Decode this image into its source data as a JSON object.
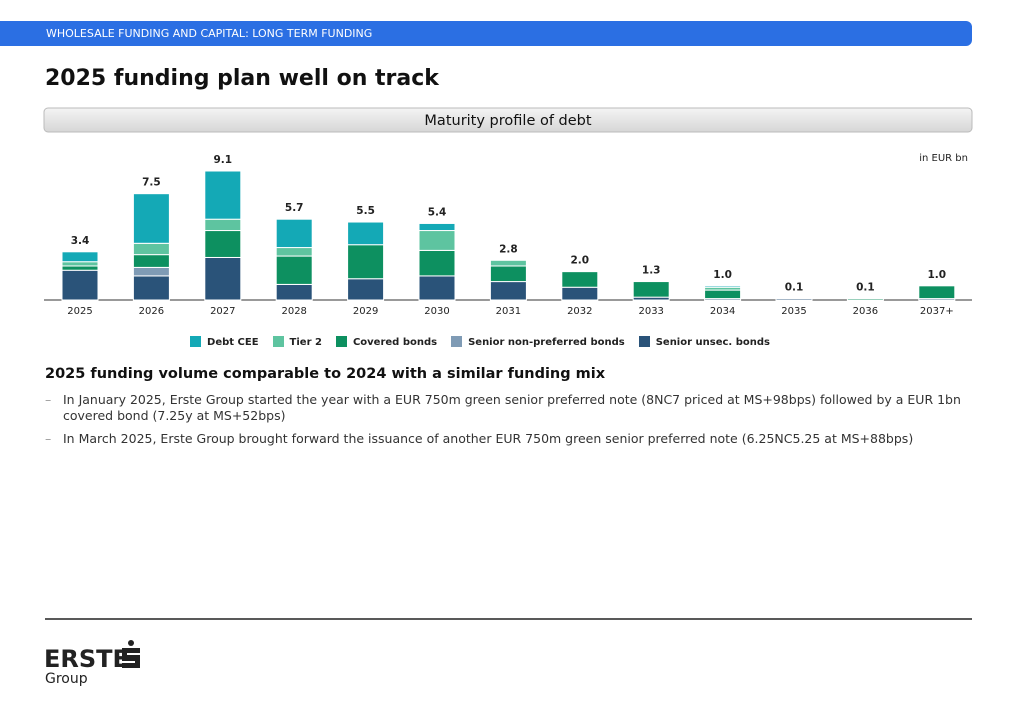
{
  "header": {
    "section": "WHOLESALE FUNDING AND CAPITAL: LONG TERM FUNDING",
    "title": "2025 funding plan well on track"
  },
  "chart_data": {
    "type": "stacked_bar",
    "title": "Maturity profile of debt",
    "unit_note": "in EUR bn",
    "categories": [
      "2025",
      "2026",
      "2027",
      "2028",
      "2029",
      "2030",
      "2031",
      "2032",
      "2033",
      "2034",
      "2035",
      "2036",
      "2037+"
    ],
    "series": [
      {
        "name": "Senior unsec. bonds",
        "color": "#2a5379",
        "values": [
          2.1,
          1.7,
          3.0,
          1.1,
          1.5,
          1.7,
          1.3,
          0.9,
          0.2,
          0.1,
          0.1,
          0,
          0.1
        ]
      },
      {
        "name": "Senior non-preferred bonds",
        "color": "#7f9bb5",
        "values": [
          0,
          0.6,
          0,
          0,
          0,
          0,
          0,
          0,
          0,
          0,
          0,
          0,
          0
        ]
      },
      {
        "name": "Covered bonds",
        "color": "#0d9060",
        "values": [
          0.3,
          0.9,
          1.9,
          2.0,
          2.4,
          1.8,
          1.1,
          1.1,
          1.1,
          0.6,
          0,
          0.1,
          0.9
        ]
      },
      {
        "name": "Tier 2",
        "color": "#5ec4a0",
        "values": [
          0.3,
          0.8,
          0.8,
          0.6,
          0,
          1.4,
          0.4,
          0,
          0,
          0.2,
          0,
          0,
          0
        ]
      },
      {
        "name": "Debt CEE",
        "color": "#14a9b6",
        "values": [
          0.7,
          3.5,
          3.4,
          2.0,
          1.6,
          0.5,
          0,
          0,
          0,
          0.1,
          0,
          0,
          0
        ]
      }
    ],
    "legend_order": [
      4,
      3,
      2,
      1,
      0
    ],
    "totals": [
      3.4,
      7.5,
      9.1,
      5.7,
      5.5,
      5.4,
      2.8,
      2.0,
      1.3,
      1.0,
      0.1,
      0.1,
      1.0
    ],
    "total_labels": [
      "3.4",
      "7.5",
      "9.1",
      "5.7",
      "5.5",
      "5.4",
      "2.8",
      "2.0",
      "1.3",
      "1.0",
      "0.1",
      "0.1",
      "1.0"
    ]
  },
  "commentary": {
    "heading": "2025 funding volume comparable to 2024 with a similar funding mix",
    "bullets": [
      "In January 2025, Erste Group started the year with a EUR 750m green senior preferred note (8NC7 priced at MS+98bps) followed by a EUR 1bn covered bond (7.25y at MS+52bps)",
      "In March 2025, Erste Group brought forward the issuance of another EUR 750m green senior preferred note (6.25NC5.25 at MS+88bps)"
    ]
  },
  "footer": {
    "logo_word": "ERSTE",
    "logo_sub": "Group"
  }
}
